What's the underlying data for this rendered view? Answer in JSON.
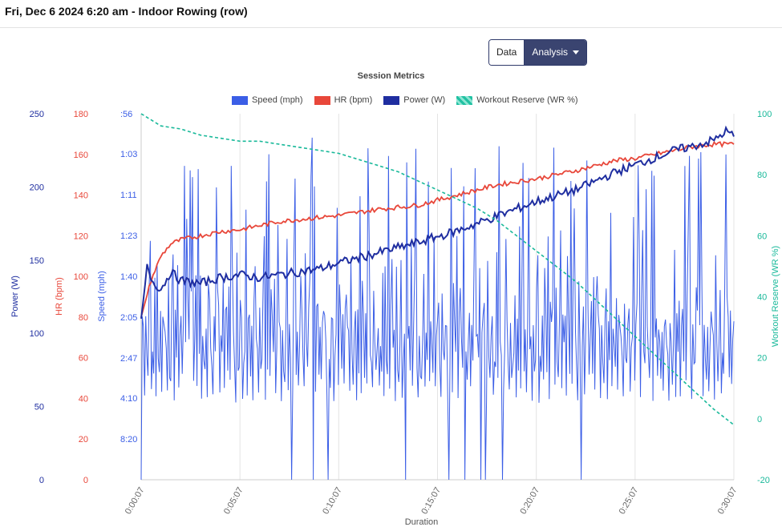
{
  "header": {
    "title": "Fri, Dec 6 2024 6:20 am - Indoor Rowing (row)"
  },
  "view_buttons": {
    "data_label": "Data",
    "analysis_label": "Analysis"
  },
  "colors": {
    "speed": "#3b5ee6",
    "hr": "#e8473a",
    "power": "#1f2ea0",
    "wr": "#19b99a"
  },
  "chart_data": {
    "type": "line",
    "title": "Session Metrics",
    "xlabel": "Duration",
    "x_ticks": [
      "0:00:07",
      "0:05:07",
      "0:10:07",
      "0:15:07",
      "0:20:07",
      "0:25:07",
      "0:30:07"
    ],
    "x_range_seconds": [
      7,
      1807
    ],
    "legend": [
      "Speed (mph)",
      "HR (bpm)",
      "Power (W)",
      "Workout Reserve (WR %)"
    ],
    "legend_position": "top-center",
    "axes": {
      "power": {
        "label": "Power (W)",
        "ticks": [
          "250",
          "200",
          "150",
          "100",
          "50",
          "0"
        ],
        "range": [
          0,
          250
        ]
      },
      "hr": {
        "label": "HR (bpm)",
        "ticks": [
          "180",
          "160",
          "140",
          "120",
          "100",
          "80",
          "60",
          "40",
          "20",
          "0"
        ],
        "range": [
          0,
          180
        ]
      },
      "speed": {
        "label": "Speed (mph)",
        "ticks": [
          ":56",
          "1:03",
          "1:11",
          "1:23",
          "1:40",
          "2:05",
          "2:47",
          "4:10",
          "8:20"
        ]
      },
      "wr": {
        "label": "Workout Reserve (WR %)",
        "ticks": [
          "100",
          "80",
          "60",
          "40",
          "20",
          "0",
          "-20"
        ],
        "range": [
          -20,
          100
        ]
      }
    },
    "series": [
      {
        "name": "HR (bpm)",
        "x_min": [
          0,
          0.5,
          1,
          1.5,
          2,
          3,
          4,
          5,
          6,
          7,
          8,
          10,
          12,
          14,
          16,
          18,
          20,
          22,
          24,
          25,
          26,
          27,
          28,
          29,
          30
        ],
        "values": [
          80,
          98,
          110,
          116,
          118,
          120,
          122,
          123,
          125,
          127,
          128,
          130,
          133,
          135,
          140,
          145,
          148,
          152,
          157,
          158,
          160,
          162,
          164,
          165,
          165
        ]
      },
      {
        "name": "Power (W)",
        "x_min": [
          0,
          0.3,
          0.6,
          1,
          1.5,
          2,
          3,
          4,
          5,
          6,
          7,
          8,
          9,
          10,
          12,
          14,
          16,
          18,
          20,
          22,
          24,
          25,
          26,
          27,
          28,
          29,
          29.6,
          30
        ],
        "values": [
          110,
          145,
          135,
          130,
          142,
          136,
          134,
          138,
          140,
          138,
          140,
          142,
          144,
          148,
          155,
          162,
          170,
          180,
          190,
          198,
          210,
          215,
          220,
          225,
          228,
          232,
          238,
          235
        ]
      },
      {
        "name": "Workout Reserve (WR %)",
        "x_min": [
          0,
          0.5,
          1,
          2,
          3,
          4,
          5,
          6,
          7,
          8,
          9,
          10,
          11,
          12,
          13,
          14,
          15,
          16,
          17,
          18,
          19,
          20,
          21,
          22,
          23,
          24,
          25,
          26,
          27,
          28,
          29,
          30
        ],
        "values": [
          100,
          98,
          96,
          95,
          93,
          92,
          91,
          91,
          90,
          89,
          88,
          87,
          85,
          83,
          81,
          78,
          75,
          72,
          69,
          65,
          60,
          55,
          50,
          45,
          39,
          33,
          27,
          21,
          15,
          9,
          3,
          -2
        ]
      },
      {
        "name": "Speed (mph)",
        "note_values": "pace per 500m displayed on inverted axis; values are seconds per 500m",
        "pattern_seconds": [
          105,
          140,
          160,
          250,
          115,
          180,
          200,
          135,
          108,
          250,
          150,
          170,
          98,
          230,
          120,
          145,
          190,
          112,
          240,
          130
        ]
      }
    ]
  }
}
